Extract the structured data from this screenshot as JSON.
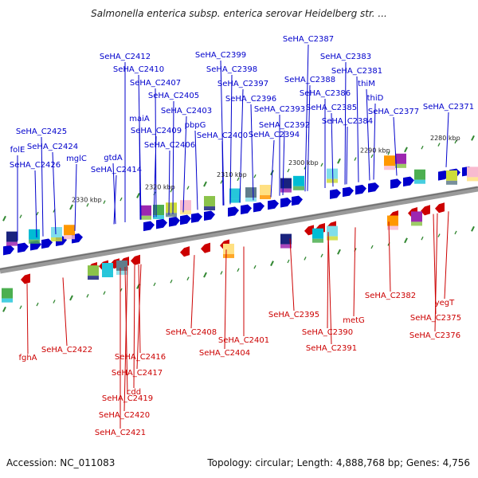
{
  "title": "Salmonella enterica subsp. enterica serovar Heidelberg str. ...",
  "accession": "Accession: NC_011083",
  "topology": "Topology: circular; Length: 4,888,768 bp; Genes: 4,756",
  "colors": {
    "forward": "#0000cc",
    "reverse": "#cc0000",
    "backbone": "#888888",
    "tick": "#338833"
  },
  "scale_labels": [
    "2330 kbp",
    "2320 kbp",
    "2310 kbp",
    "2300 kbp",
    "2290 kbp",
    "2280 kbp"
  ],
  "forward_genes": [
    "SeHA_C2387",
    "SeHA_C2412",
    "SeHA_C2399",
    "SeHA_C2383",
    "SeHA_C2410",
    "SeHA_C2398",
    "SeHA_C2381",
    "SeHA_C2388",
    "SeHA_C2407",
    "SeHA_C2397",
    "SeHA_C2386",
    "thiM",
    "SeHA_C2405",
    "SeHA_C2396",
    "thiD",
    "SeHA_C2385",
    "SeHA_C2371",
    "maiA",
    "SeHA_C2403",
    "SeHA_C2393",
    "SeHA_C2377",
    "SeHA_C2384",
    "pbpG",
    "SeHA_C2392",
    "SeHA_C2425",
    "SeHA_C2409",
    "SeHA_C2400",
    "SeHA_C2394",
    "folE",
    "SeHA_C2424",
    "SeHA_C2406",
    "gtdA",
    "mglC",
    "SeHA_C2426",
    "SeHA_C2414"
  ],
  "reverse_genes": [
    "SeHA_C2395",
    "metG",
    "SeHA_C2382",
    "yegT",
    "SeHA_C2390",
    "SeHA_C2375",
    "SeHA_C2408",
    "SeHA_C2401",
    "SeHA_C2391",
    "SeHA_C2376",
    "fghA",
    "SeHA_C2422",
    "SeHA_C2404",
    "SeHA_C2416",
    "SeHA_C2417",
    "cdd",
    "SeHA_C2419",
    "SeHA_C2420",
    "SeHA_C2421"
  ]
}
